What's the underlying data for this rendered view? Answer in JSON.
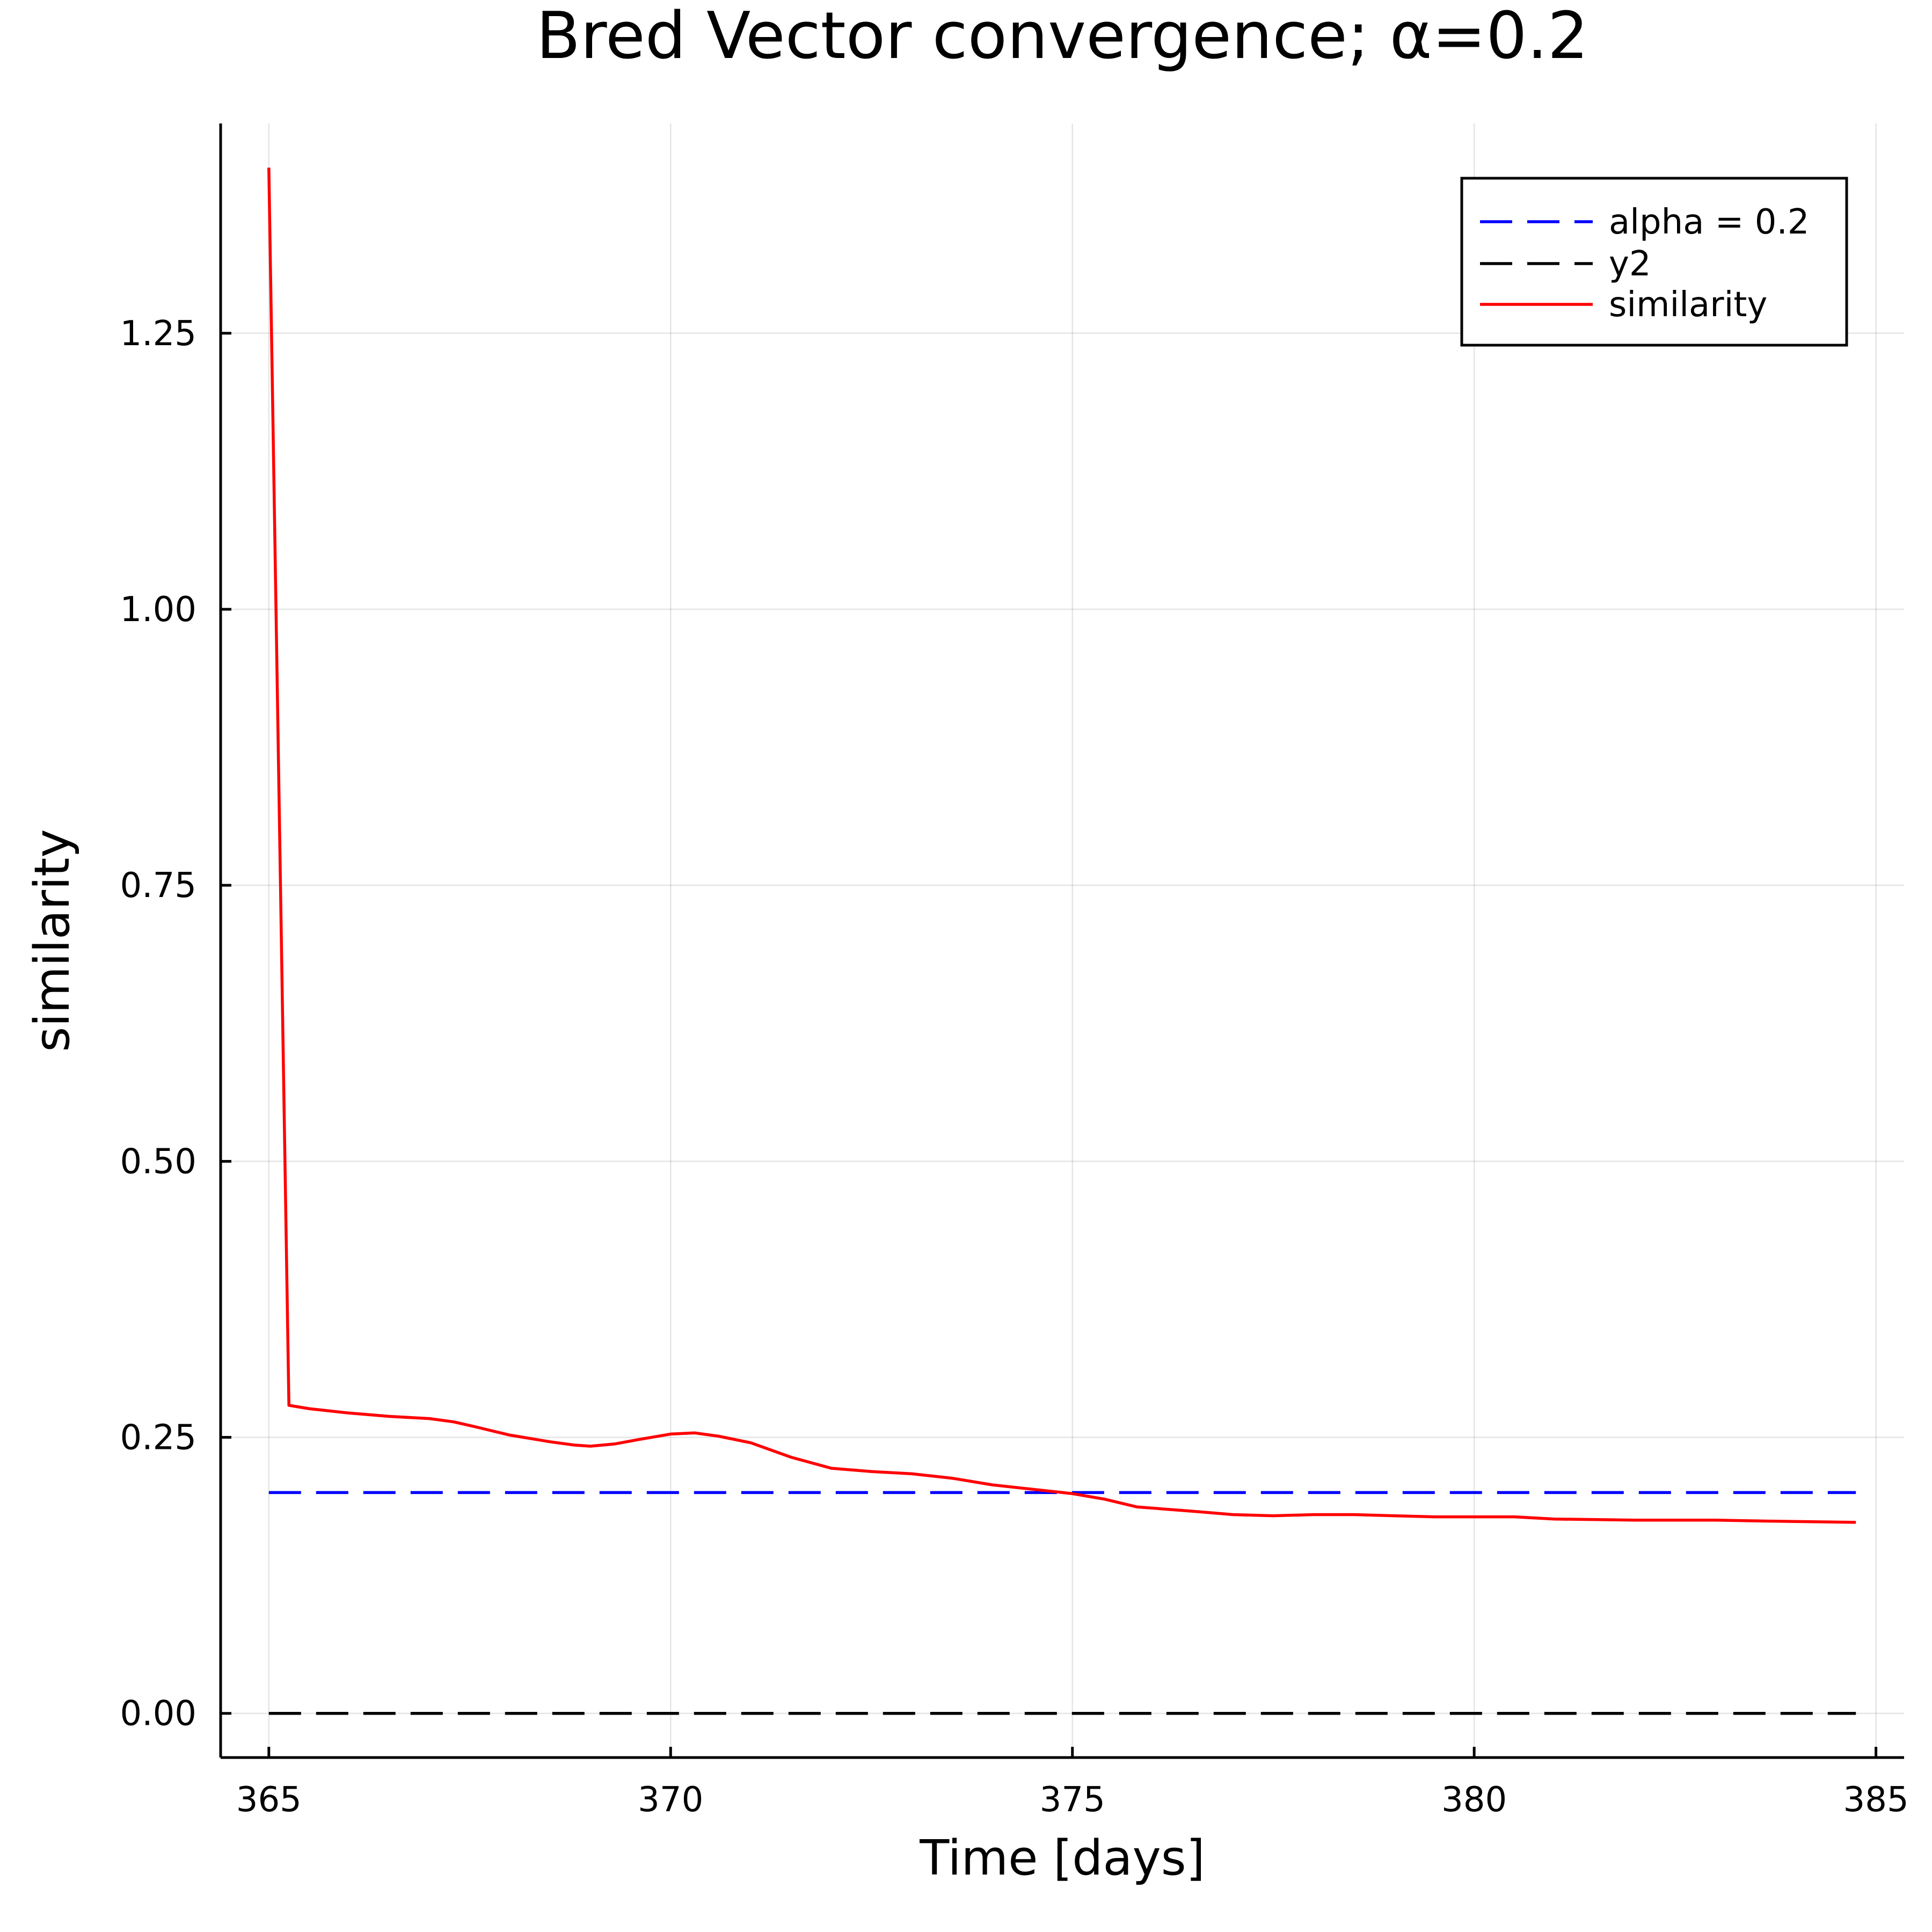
{
  "chart_data": {
    "type": "line",
    "title": "Bred Vector convergence; α=0.2",
    "xlabel": "Time [days]",
    "ylabel": "similarity",
    "xlim": [
      364.4,
      385.35
    ],
    "ylim": [
      -0.04,
      1.44
    ],
    "xticks": [
      365,
      370,
      375,
      380,
      385
    ],
    "xtick_labels": [
      "365",
      "370",
      "375",
      "380",
      "385"
    ],
    "yticks": [
      0.0,
      0.25,
      0.5,
      0.75,
      1.0,
      1.25
    ],
    "ytick_labels": [
      "0.00",
      "0.25",
      "0.50",
      "0.75",
      "1.00",
      "1.25"
    ],
    "grid": true,
    "legend_position": "top-right",
    "series": [
      {
        "name": "alpha = 0.2",
        "color": "#0000ff",
        "style": "dashed",
        "x": [
          365,
          384.75
        ],
        "y": [
          0.2,
          0.2
        ]
      },
      {
        "name": "y2",
        "color": "#000000",
        "style": "dashed",
        "x": [
          365,
          384.75
        ],
        "y": [
          0.0,
          0.0
        ]
      },
      {
        "name": "similarity",
        "color": "#ff0000",
        "style": "solid",
        "x": [
          365.0,
          365.25,
          365.5,
          366.0,
          366.5,
          367.0,
          367.3,
          367.6,
          368.0,
          368.5,
          368.8,
          369.0,
          369.3,
          369.6,
          370.0,
          370.3,
          370.6,
          371.0,
          371.5,
          372.0,
          372.5,
          373.0,
          373.5,
          374.0,
          374.5,
          375.0,
          375.4,
          375.8,
          376.5,
          377.0,
          377.5,
          378.0,
          378.5,
          379.0,
          379.5,
          380.0,
          380.5,
          381.0,
          382.0,
          383.0,
          383.8,
          384.75
        ],
        "y": [
          1.4,
          0.279,
          0.276,
          0.272,
          0.269,
          0.267,
          0.264,
          0.259,
          0.252,
          0.246,
          0.243,
          0.242,
          0.244,
          0.248,
          0.253,
          0.254,
          0.251,
          0.245,
          0.232,
          0.222,
          0.219,
          0.217,
          0.213,
          0.207,
          0.203,
          0.199,
          0.194,
          0.187,
          0.183,
          0.18,
          0.179,
          0.18,
          0.18,
          0.179,
          0.178,
          0.178,
          0.178,
          0.176,
          0.175,
          0.175,
          0.174,
          0.173
        ]
      }
    ]
  }
}
